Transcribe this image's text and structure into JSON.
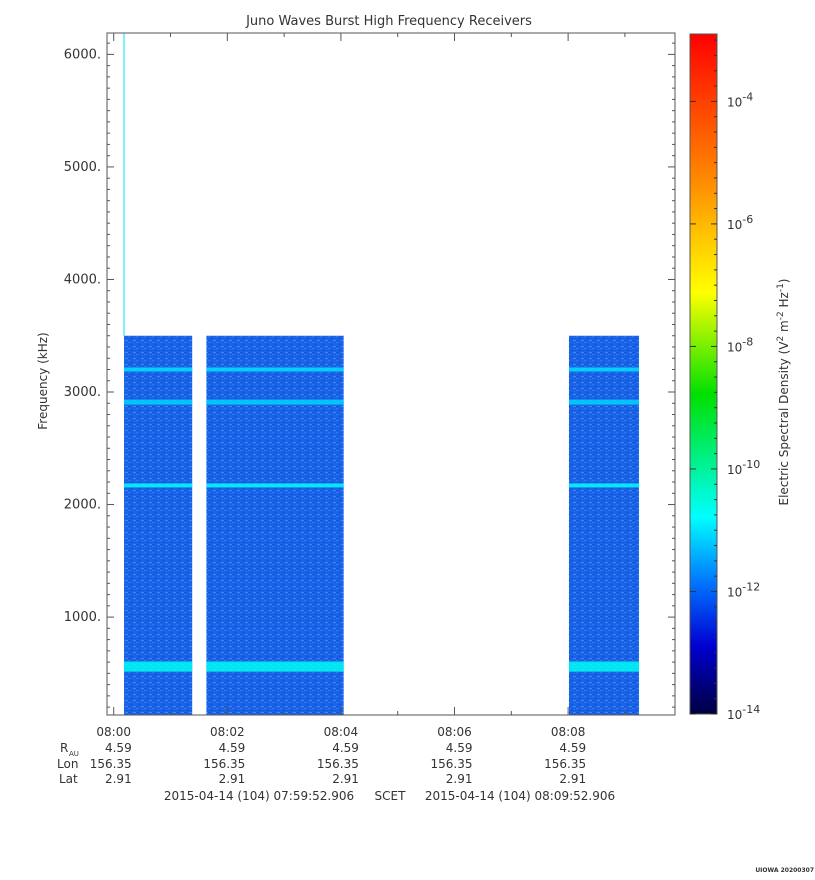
{
  "chart_data": {
    "type": "heatmap",
    "title": "Juno Waves Burst High Frequency Receivers",
    "ylabel": "Frequency (kHz)",
    "ylim": [
      130,
      6190
    ],
    "y_ticks": [
      {
        "value": 1000,
        "label": "1000."
      },
      {
        "value": 2000,
        "label": "2000."
      },
      {
        "value": 3000,
        "label": "3000."
      },
      {
        "value": 4000,
        "label": "4000."
      },
      {
        "value": 5000,
        "label": "5000."
      },
      {
        "value": 6000,
        "label": "6000."
      }
    ],
    "x_range_seconds": [
      0,
      600
    ],
    "x_ticks": [
      {
        "seconds": 7.094,
        "label": "08:00"
      },
      {
        "seconds": 127.094,
        "label": "08:02"
      },
      {
        "seconds": 247.094,
        "label": "08:04"
      },
      {
        "seconds": 367.094,
        "label": "08:06"
      },
      {
        "seconds": 487.094,
        "label": "08:08"
      }
    ],
    "ephemeris": {
      "labels": {
        "r_main": "R",
        "r_sub": "AU",
        "lon": "Lon",
        "lat": "Lat"
      },
      "r_au": [
        "4.59",
        "4.59",
        "4.59",
        "4.59",
        "4.59"
      ],
      "lon": [
        "156.35",
        "156.35",
        "156.35",
        "156.35",
        "156.35"
      ],
      "lat": [
        "2.91",
        "2.91",
        "2.91",
        "2.91",
        "2.91"
      ]
    },
    "time_range": {
      "start": "2015-04-14 (104) 07:59:52.906",
      "label": "SCET",
      "end": "2015-04-14 (104) 08:09:52.906"
    },
    "colorbar": {
      "label_main": "Electric Spectral Density (V",
      "label_sup1": "2",
      "label_mid": " m",
      "label_sup2": "-2",
      "label_mid2": " Hz",
      "label_sup3": "-1",
      "label_end": ")",
      "scale": "log",
      "range_exponent": [
        -14,
        -2.9
      ],
      "ticks": [
        {
          "base": "10",
          "exp": "-4",
          "value_exponent": -4
        },
        {
          "base": "10",
          "exp": "-6",
          "value_exponent": -6
        },
        {
          "base": "10",
          "exp": "-8",
          "value_exponent": -8
        },
        {
          "base": "10",
          "exp": "-10",
          "value_exponent": -10
        },
        {
          "base": "10",
          "exp": "-12",
          "value_exponent": -12
        },
        {
          "base": "10",
          "exp": "-14",
          "value_exponent": -14
        }
      ],
      "colors": [
        "#000080",
        "#0000ff",
        "#0080ff",
        "#00ffff",
        "#00ff00",
        "#ffff00",
        "#ff8000",
        "#ff0000"
      ]
    },
    "data_blocks": [
      {
        "start_s": 18,
        "end_s": 90,
        "fmin_khz": 130,
        "fmax_khz": 3500
      },
      {
        "start_s": 105,
        "end_s": 250,
        "fmin_khz": 130,
        "fmax_khz": 3500
      },
      {
        "start_s": 488,
        "end_s": 562,
        "fmin_khz": 130,
        "fmax_khz": 3500
      }
    ],
    "spike": {
      "time_s": 18,
      "fmax_khz": 6190
    },
    "background_level_exponent": -12.2,
    "emission_bands": [
      {
        "center_khz": 560,
        "width_khz": 90,
        "level_exponent": -10.9
      },
      {
        "center_khz": 2170,
        "width_khz": 35,
        "level_exponent": -11.0
      },
      {
        "center_khz": 2910,
        "width_khz": 45,
        "level_exponent": -11.3
      },
      {
        "center_khz": 3200,
        "width_khz": 35,
        "level_exponent": -11.2
      }
    ],
    "grid": false,
    "legend": "colorbar-right"
  },
  "footer": {
    "tag": "UIOWA 20200307"
  }
}
